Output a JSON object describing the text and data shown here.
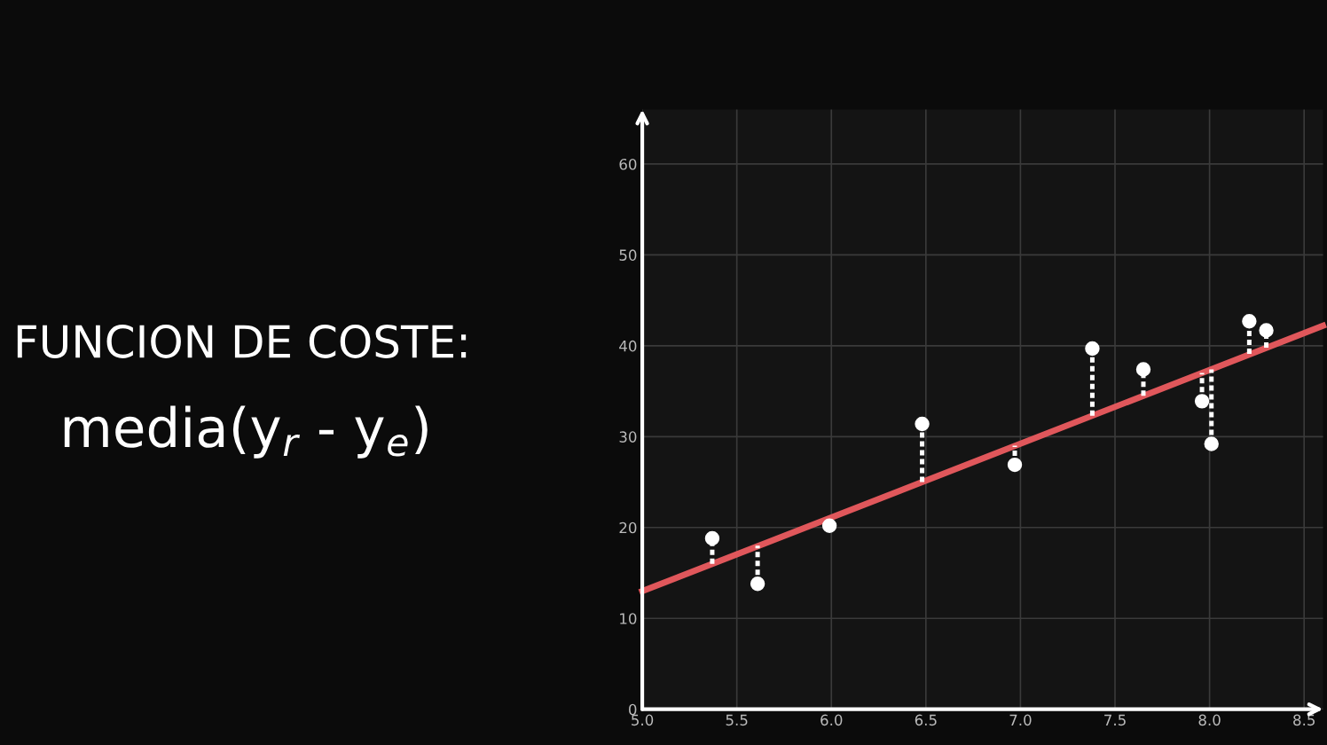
{
  "chart_data": {
    "type": "scatter",
    "annotations": [
      "FUNCION DE COSTE:",
      "media(y$_{r}$ - y$_{e}$)"
    ],
    "series": [
      {
        "color": "#ffffff",
        "marker": "circle",
        "x": [
          5.37,
          5.61,
          5.99,
          6.48,
          6.97,
          7.38,
          7.65,
          7.96,
          8.01,
          8.21,
          8.3
        ],
        "values": [
          18.8,
          13.8,
          20.2,
          31.4,
          26.9,
          39.7,
          37.4,
          33.9,
          29.2,
          42.7,
          41.7
        ],
        "errors": [
          [
            16.0,
            18.8
          ],
          [
            13.8,
            18.0
          ],
          [
            20.2,
            21.0
          ],
          [
            25.0,
            31.4
          ],
          [
            26.9,
            29.0
          ],
          [
            32.3,
            39.7
          ],
          [
            34.5,
            37.4
          ],
          [
            33.9,
            37.0
          ],
          [
            29.2,
            37.4
          ],
          [
            39.1,
            42.7
          ],
          [
            39.8,
            41.7
          ]
        ],
        "line_style": "dotted"
      },
      {
        "type": "line",
        "color": "#e0575b",
        "x": [
          5.0,
          8.6
        ],
        "values": [
          13.0,
          42.2
        ],
        "line_style": "solid"
      }
    ],
    "xlim": [
      5.0,
      8.6
    ],
    "ylim": [
      0,
      66
    ],
    "xticks": [
      {
        "value": 5.0,
        "label": "5.0"
      },
      5.5,
      {
        "value": 6.0,
        "label": "6.0"
      },
      6.5,
      {
        "value": 7.0,
        "label": "7.0"
      },
      7.5,
      {
        "value": 8.0,
        "label": "8.0"
      },
      8.5
    ],
    "yticks": [
      0,
      10,
      20,
      30,
      40,
      50,
      60
    ],
    "grid": true,
    "legend": false
  }
}
